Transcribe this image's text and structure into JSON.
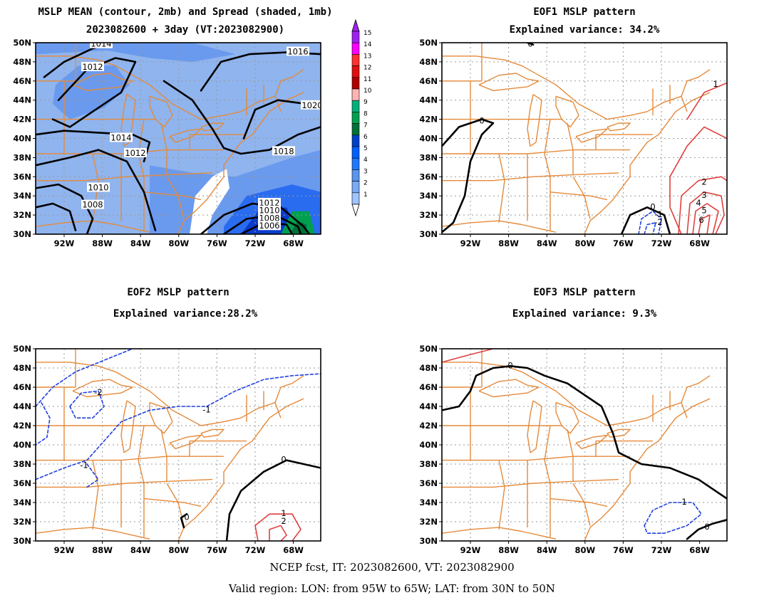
{
  "panels": [
    {
      "title_line1": "MSLP MEAN (contour, 2mb) and Spread (shaded, 1mb)",
      "title_line2": "2023082600 + 3day (VT:2023082900)"
    },
    {
      "title_line1": "EOF1 MSLP pattern",
      "title_line2": "Explained variance: 34.2%"
    },
    {
      "title_line1": "EOF2 MSLP pattern",
      "title_line2": "Explained variance:28.2%"
    },
    {
      "title_line1": "EOF3 MSLP pattern",
      "title_line2": "Explained variance: 9.3%"
    }
  ],
  "axes": {
    "lat_labels": [
      "50N",
      "48N",
      "46N",
      "44N",
      "42N",
      "40N",
      "38N",
      "36N",
      "34N",
      "32N",
      "30N"
    ],
    "lon_labels": [
      "92W",
      "88W",
      "84W",
      "80W",
      "76W",
      "72W",
      "68W"
    ]
  },
  "colorbar": {
    "labels": [
      "15",
      "14",
      "13",
      "12",
      "11",
      "10",
      "9",
      "8",
      "7",
      "6",
      "5",
      "4",
      "3",
      "2",
      "1"
    ],
    "colors": [
      "#a020f0",
      "#ff00ff",
      "#ff3030",
      "#e01010",
      "#b00000",
      "#ffb4b4",
      "#00b07a",
      "#00a050",
      "#007038",
      "#0040c8",
      "#0060ff",
      "#1e78ff",
      "#5a96f0",
      "#78aaf5",
      "#a0c4ff"
    ]
  },
  "panel1_contour_labels": [
    "1014",
    "1016",
    "1012",
    "1020",
    "1014",
    "1018",
    "1012",
    "1010",
    "1008",
    "1012",
    "1010",
    "1008",
    "1006"
  ],
  "eof1_labels": [
    "0",
    "0",
    "1",
    "2",
    "3",
    "4",
    "5",
    "6",
    "0",
    "-1",
    "-2"
  ],
  "eof2_labels": [
    "-1",
    "-2",
    "-1",
    "0",
    "1",
    "2",
    "0"
  ],
  "eof3_labels": [
    "0",
    "1",
    "0"
  ],
  "footer": {
    "line1": "NCEP fcst, IT: 2023082600, VT: 2023082900",
    "line2": "Valid region: LON: from 95W to 65W; LAT: from 30N to 50N"
  },
  "colors": {
    "coast": "#e58a3a",
    "positive": "#e04040",
    "negative": "#2040e0",
    "zero": "#000000"
  }
}
